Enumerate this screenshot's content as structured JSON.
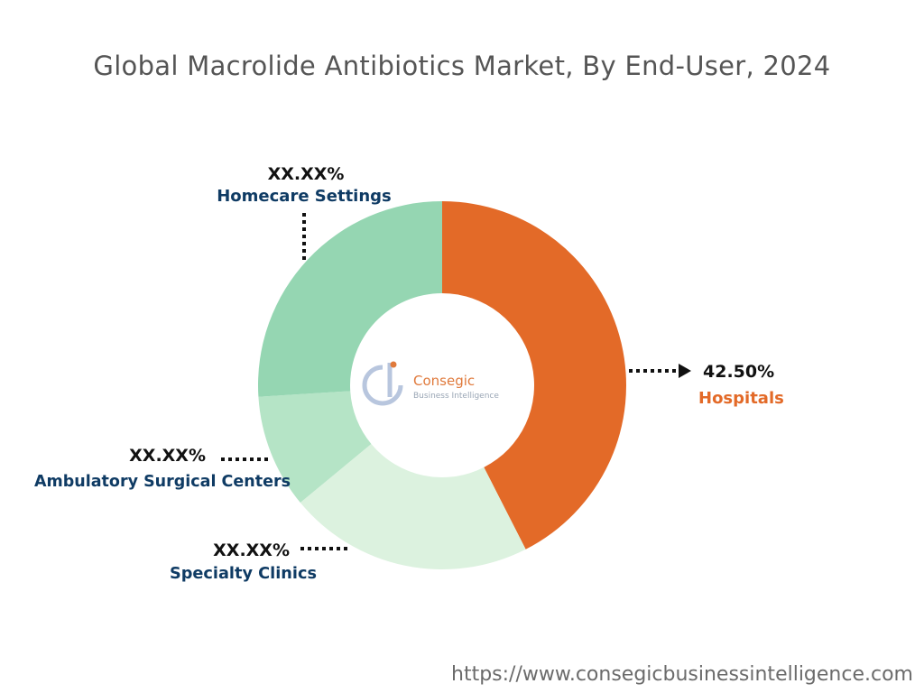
{
  "chart_data": {
    "type": "pie",
    "title": "Global Macrolide Antibiotics Market, By End-User, 2024",
    "variant": "donut",
    "slices": [
      {
        "name": "Hospitals",
        "value": 42.5,
        "label": "42.50%",
        "color": "#e36a28",
        "name_color": "#e36a28"
      },
      {
        "name": "Specialty Clinics",
        "value": 21.5,
        "label": "XX.XX%",
        "color": "#dcf2df",
        "name_color": "#0f3b64"
      },
      {
        "name": "Ambulatory Surgical Centers",
        "value": 10.0,
        "label": "XX.XX%",
        "color": "#b5e4c6",
        "name_color": "#0f3b64"
      },
      {
        "name": "Homecare Settings",
        "value": 26.0,
        "label": "XX.XX%",
        "color": "#95d6b2",
        "name_color": "#0f3b64"
      }
    ]
  },
  "logo": {
    "name": "Consegic",
    "tagline": "Business Intelligence"
  },
  "footer": {
    "url": "https://www.consegicbusinessintelligence.com"
  }
}
